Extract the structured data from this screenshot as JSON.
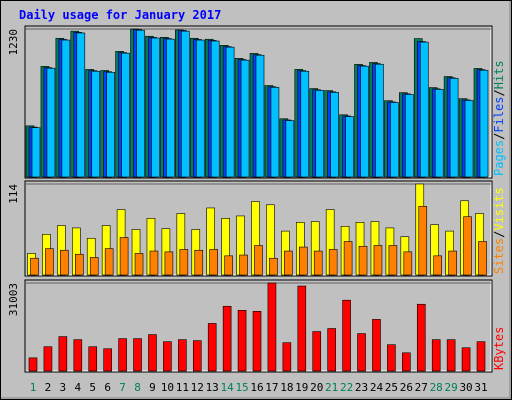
{
  "chart_data": [
    {
      "type": "bar",
      "title": "Daily usage for January 2017",
      "categories": [
        "1",
        "2",
        "3",
        "4",
        "5",
        "6",
        "7",
        "8",
        "9",
        "10",
        "11",
        "12",
        "13",
        "14",
        "15",
        "16",
        "17",
        "18",
        "19",
        "20",
        "21",
        "22",
        "23",
        "24",
        "25",
        "26",
        "27",
        "28",
        "29",
        "30",
        "31"
      ],
      "category_colors": [
        "#00805c",
        "#000000",
        "#000000",
        "#000000",
        "#000000",
        "#000000",
        "#00805c",
        "#00805c",
        "#000000",
        "#000000",
        "#000000",
        "#000000",
        "#000000",
        "#00805c",
        "#00805c",
        "#000000",
        "#000000",
        "#000000",
        "#000000",
        "#000000",
        "#00805c",
        "#00805c",
        "#000000",
        "#000000",
        "#000000",
        "#000000",
        "#000000",
        "#00805c",
        "#00805c",
        "#000000",
        "#000000"
      ],
      "separator": "/",
      "ylim": [
        0,
        1230
      ],
      "yticks": [
        1230
      ],
      "series": [
        {
          "name": "Hits",
          "color": "#00805c",
          "values": [
            425,
            919,
            1153,
            1212,
            894,
            885,
            1044,
            1230,
            1170,
            1161,
            1222,
            1153,
            1145,
            1094,
            986,
            1027,
            760,
            484,
            894,
            735,
            718,
            517,
            936,
            952,
            634,
            701,
            1150,
            743,
            835,
            651,
            902
          ]
        },
        {
          "name": "Files",
          "color": "#0040ff",
          "values": [
            415,
            909,
            1143,
            1202,
            884,
            875,
            1034,
            1225,
            1160,
            1151,
            1218,
            1143,
            1135,
            1084,
            976,
            1017,
            750,
            474,
            884,
            725,
            708,
            507,
            926,
            942,
            624,
            691,
            1126,
            733,
            825,
            641,
            892
          ]
        },
        {
          "name": "Pages",
          "color": "#00c0ff",
          "values": [
            410,
            904,
            1138,
            1197,
            879,
            870,
            1029,
            1220,
            1155,
            1146,
            1212,
            1138,
            1130,
            1079,
            971,
            1012,
            745,
            469,
            879,
            720,
            703,
            502,
            921,
            937,
            619,
            686,
            1121,
            728,
            820,
            636,
            887
          ]
        }
      ]
    },
    {
      "type": "bar",
      "separator": "/",
      "ylim": [
        0,
        114
      ],
      "yticks": [
        114
      ],
      "series": [
        {
          "name": "Visits",
          "color": "#ffff00",
          "values": [
            27,
            51,
            62,
            59,
            46,
            62,
            82,
            57,
            71,
            58,
            77,
            57,
            84,
            71,
            74,
            92,
            88,
            55,
            66,
            67,
            82,
            61,
            66,
            67,
            59,
            48,
            114,
            63,
            55,
            93,
            77
          ]
        },
        {
          "name": "Sites",
          "color": "#ff8000",
          "values": [
            21,
            33,
            31,
            26,
            22,
            33,
            47,
            27,
            30,
            29,
            32,
            31,
            32,
            24,
            25,
            37,
            21,
            30,
            35,
            30,
            32,
            42,
            36,
            37,
            37,
            29,
            86,
            24,
            30,
            73,
            42
          ]
        }
      ]
    },
    {
      "type": "bar",
      "ylim": [
        0,
        31003
      ],
      "yticks": [
        31003
      ],
      "series": [
        {
          "name": "KBytes",
          "color": "#ff0000",
          "values": [
            4633,
            8553,
            12116,
            11047,
            8553,
            7840,
            11403,
            11403,
            12829,
            10334,
            11047,
            10691,
            16749,
            22807,
            21382,
            21026,
            31003,
            9978,
            29934,
            13898,
            14967,
            24945,
            13185,
            18174,
            9265,
            6414,
            23520,
            11047,
            11047,
            8196,
            10334
          ]
        }
      ]
    }
  ]
}
